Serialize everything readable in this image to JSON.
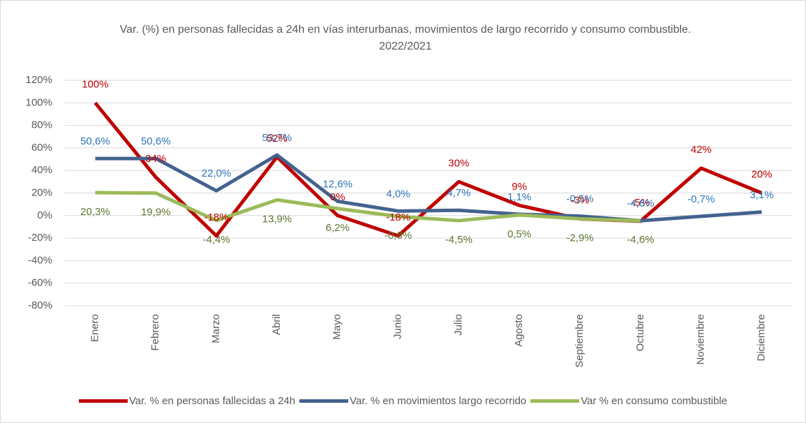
{
  "chart_data": {
    "type": "line",
    "title": "Var. (%) en personas fallecidas a 24h en vías interurbanas, movimientos de largo recorrido y consumo combustible. 2022/2021",
    "categories": [
      "Enero",
      "Febrero",
      "Marzo",
      "Abril",
      "Mayo",
      "Junio",
      "Julio",
      "Agosto",
      "Septiembre",
      "Octubre",
      "Noviembre",
      "Diciembre"
    ],
    "series": [
      {
        "name": "Var. % en personas fallecidas a 24h",
        "color": "#c00000",
        "label_color": "#c00000",
        "values": [
          100,
          34,
          -18,
          52,
          0,
          -18,
          30,
          9,
          -3,
          -5,
          42,
          20
        ],
        "value_labels": [
          "100%",
          "34%",
          "-18%",
          "52%",
          "0%",
          "-18%",
          "30%",
          "9%",
          "-3%",
          "-5%",
          "42%",
          "20%"
        ]
      },
      {
        "name": "Var. % en movimientos largo recorrido",
        "color": "#44628f",
        "label_color": "#2e75b6",
        "values": [
          50.6,
          50.6,
          22.0,
          53.7,
          12.6,
          4.0,
          4.7,
          1.1,
          -0.5,
          -4.6,
          -0.7,
          3.1
        ],
        "value_labels": [
          "50,6%",
          "50,6%",
          "22,0%",
          "53,7%",
          "12,6%",
          "4,0%",
          "4,7%",
          "1,1%",
          "-0,5%",
          "-4,6%",
          "-0,7%",
          "3,1%"
        ]
      },
      {
        "name": "Var % en consumo combustible",
        "color": "#9bbb59",
        "label_color": "#5f7530",
        "values": [
          20.3,
          19.9,
          -4.4,
          13.9,
          6.2,
          -0.8,
          -4.5,
          0.5,
          -2.9,
          -4.6,
          null,
          null
        ],
        "value_labels": [
          "20,3%",
          "19,9%",
          "-4,4%",
          "13,9%",
          "6,2%",
          "-0,8%",
          "-4,5%",
          "0,5%",
          "-2,9%",
          "-4,6%",
          null,
          null
        ]
      }
    ],
    "ylim": [
      -80,
      120
    ],
    "yticks": [
      {
        "value": -80,
        "label": "-80%"
      },
      {
        "value": -60,
        "label": "-60%"
      },
      {
        "value": -40,
        "label": "-40%"
      },
      {
        "value": -20,
        "label": "-20%"
      },
      {
        "value": 0,
        "label": "0%"
      },
      {
        "value": 20,
        "label": "20%"
      },
      {
        "value": 40,
        "label": "40%"
      },
      {
        "value": 60,
        "label": "60%"
      },
      {
        "value": 80,
        "label": "80%"
      },
      {
        "value": 100,
        "label": "100%"
      },
      {
        "value": 120,
        "label": "120%"
      }
    ],
    "grid": true,
    "legend": "bottom"
  }
}
